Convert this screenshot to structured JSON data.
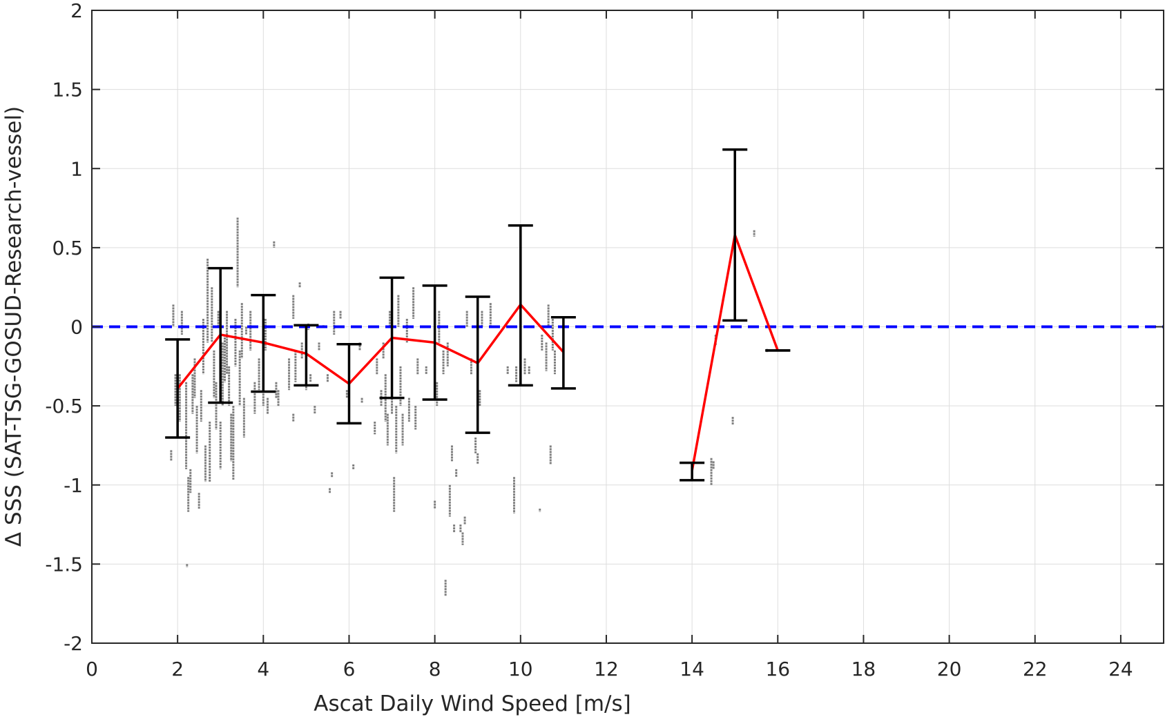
{
  "chart_data": {
    "type": "scatter",
    "xlabel": "Ascat Daily Wind Speed [m/s]",
    "ylabel": "Δ SSS (SAT-TSG-GOSUD-Research-vessel)",
    "xlim": [
      0,
      25
    ],
    "ylim": [
      -2,
      2
    ],
    "x_ticks": [
      0,
      2,
      4,
      6,
      8,
      10,
      12,
      14,
      16,
      18,
      20,
      22,
      24
    ],
    "y_ticks": [
      -2,
      -1.5,
      -1,
      -0.5,
      0,
      0.5,
      1,
      1.5,
      2
    ],
    "y_tick_labels": [
      "-2",
      "-1.5",
      "-1",
      "-0.5",
      "0",
      "0.5",
      "1",
      "1.5",
      "2"
    ],
    "grid": true,
    "reference_line": {
      "y": 0,
      "style": "dashed",
      "color": "#0000ff"
    },
    "colors": {
      "mean_line": "#ff0000",
      "error_bars": "#000000",
      "points": "#7f7f7f",
      "grid": "#dddddd"
    },
    "binned_mean": {
      "x": [
        2,
        3,
        4,
        5,
        6,
        7,
        8,
        9,
        10,
        11,
        14,
        15,
        16
      ],
      "y": [
        -0.39,
        -0.05,
        -0.1,
        -0.17,
        -0.36,
        -0.07,
        -0.1,
        -0.23,
        0.14,
        -0.16,
        -0.91,
        0.58,
        -0.15
      ],
      "segments": [
        [
          0,
          9
        ],
        [
          10,
          12
        ]
      ]
    },
    "error_bars": [
      {
        "x": 2,
        "low": -0.7,
        "high": -0.08
      },
      {
        "x": 3,
        "low": -0.48,
        "high": 0.37
      },
      {
        "x": 4,
        "low": -0.41,
        "high": 0.2
      },
      {
        "x": 5,
        "low": -0.37,
        "high": 0.01
      },
      {
        "x": 6,
        "low": -0.61,
        "high": -0.11
      },
      {
        "x": 7,
        "low": -0.45,
        "high": 0.31
      },
      {
        "x": 8,
        "low": -0.46,
        "high": 0.26
      },
      {
        "x": 9,
        "low": -0.67,
        "high": 0.19
      },
      {
        "x": 10,
        "low": -0.37,
        "high": 0.64
      },
      {
        "x": 11,
        "low": -0.39,
        "high": 0.06
      },
      {
        "x": 14,
        "low": -0.97,
        "high": -0.86
      },
      {
        "x": 15,
        "low": 0.04,
        "high": 1.12
      },
      {
        "x": 16,
        "low": -0.15,
        "high": -0.15
      }
    ],
    "scatter_points": {
      "note_stacks": "each entry [x, y_low, y_high] is a vertical stack of gray observation points",
      "stacks": [
        [
          1.85,
          -0.85,
          -0.78
        ],
        [
          1.9,
          0.0,
          0.14
        ],
        [
          1.95,
          -0.5,
          -0.3
        ],
        [
          2.05,
          -0.6,
          -0.3
        ],
        [
          2.1,
          -0.05,
          0.1
        ],
        [
          2.2,
          -0.9,
          -0.35
        ],
        [
          2.25,
          -1.17,
          -0.95
        ],
        [
          2.22,
          -1.52,
          -1.5
        ],
        [
          2.3,
          -1.05,
          -0.9
        ],
        [
          2.35,
          -0.55,
          -0.3
        ],
        [
          2.4,
          -0.45,
          -0.2
        ],
        [
          2.45,
          -0.8,
          -0.5
        ],
        [
          2.5,
          -1.15,
          -1.05
        ],
        [
          2.55,
          -0.6,
          -0.4
        ],
        [
          2.6,
          -0.3,
          0.05
        ],
        [
          2.65,
          -0.98,
          -0.75
        ],
        [
          2.7,
          -0.1,
          0.43
        ],
        [
          2.75,
          -0.98,
          -0.6
        ],
        [
          2.8,
          -0.1,
          0.25
        ],
        [
          2.85,
          -0.45,
          -0.15
        ],
        [
          2.9,
          -0.65,
          -0.35
        ],
        [
          2.95,
          0.0,
          0.1
        ],
        [
          3.0,
          -0.9,
          -0.6
        ],
        [
          3.05,
          -0.5,
          -0.1
        ],
        [
          3.1,
          -0.35,
          -0.05
        ],
        [
          3.15,
          -0.3,
          0.1
        ],
        [
          3.2,
          -0.5,
          -0.25
        ],
        [
          3.25,
          -0.85,
          -0.55
        ],
        [
          3.3,
          -0.97,
          -0.5
        ],
        [
          3.35,
          -0.25,
          0.05
        ],
        [
          3.4,
          0.25,
          0.69
        ],
        [
          3.45,
          -0.5,
          -0.15
        ],
        [
          3.5,
          -0.2,
          0.15
        ],
        [
          3.55,
          -0.7,
          -0.45
        ],
        [
          3.6,
          -0.05,
          0.0
        ],
        [
          3.7,
          -0.15,
          0.1
        ],
        [
          3.8,
          -0.55,
          -0.35
        ],
        [
          3.9,
          -0.4,
          -0.2
        ],
        [
          4.0,
          -0.5,
          -0.3
        ],
        [
          4.05,
          -0.15,
          0.05
        ],
        [
          4.1,
          -0.55,
          -0.45
        ],
        [
          4.25,
          0.5,
          0.54
        ],
        [
          4.3,
          -0.45,
          -0.35
        ],
        [
          4.35,
          -0.5,
          -0.4
        ],
        [
          4.6,
          -0.4,
          -0.2
        ],
        [
          4.7,
          -0.6,
          -0.55
        ],
        [
          4.75,
          -0.35,
          -0.15
        ],
        [
          4.7,
          0.05,
          0.2
        ],
        [
          4.85,
          0.25,
          0.28
        ],
        [
          4.9,
          -0.2,
          -0.1
        ],
        [
          5.0,
          -0.4,
          -0.15
        ],
        [
          5.05,
          -0.02,
          0.02
        ],
        [
          5.1,
          -0.35,
          -0.3
        ],
        [
          5.2,
          -0.55,
          -0.5
        ],
        [
          5.3,
          -0.15,
          -0.1
        ],
        [
          5.4,
          0.0,
          0.01
        ],
        [
          5.5,
          -0.35,
          -0.3
        ],
        [
          5.6,
          -0.95,
          -0.92
        ],
        [
          5.55,
          -1.05,
          -1.02
        ],
        [
          5.65,
          -0.05,
          0.1
        ],
        [
          5.8,
          0.05,
          0.1
        ],
        [
          5.95,
          -0.45,
          -0.4
        ],
        [
          6.1,
          -0.9,
          -0.87
        ],
        [
          6.25,
          -0.15,
          -0.1
        ],
        [
          6.3,
          -0.48,
          -0.45
        ],
        [
          6.6,
          -0.68,
          -0.6
        ],
        [
          6.65,
          -0.3,
          -0.2
        ],
        [
          6.75,
          -0.5,
          -0.4
        ],
        [
          6.8,
          -0.2,
          -0.1
        ],
        [
          6.85,
          -0.6,
          -0.3
        ],
        [
          6.9,
          -0.75,
          -0.55
        ],
        [
          6.95,
          0.0,
          0.1
        ],
        [
          7.0,
          -0.55,
          -0.45
        ],
        [
          7.05,
          -1.17,
          -0.95
        ],
        [
          7.1,
          -0.8,
          -0.5
        ],
        [
          7.15,
          0.0,
          0.2
        ],
        [
          7.2,
          -0.5,
          -0.25
        ],
        [
          7.25,
          -0.75,
          -0.55
        ],
        [
          7.35,
          -0.1,
          0.05
        ],
        [
          7.4,
          -0.6,
          -0.45
        ],
        [
          7.5,
          0.05,
          0.25
        ],
        [
          7.55,
          -0.65,
          -0.5
        ],
        [
          7.6,
          -0.3,
          -0.2
        ],
        [
          7.8,
          -0.3,
          -0.25
        ],
        [
          8.0,
          -1.15,
          -1.1
        ],
        [
          8.05,
          -0.5,
          -0.35
        ],
        [
          8.1,
          -0.1,
          0.1
        ],
        [
          8.2,
          -0.3,
          -0.15
        ],
        [
          8.25,
          -1.7,
          -1.6
        ],
        [
          8.3,
          -0.25,
          -0.1
        ],
        [
          8.35,
          -1.2,
          -1.0
        ],
        [
          8.4,
          -0.85,
          -0.75
        ],
        [
          8.45,
          -1.3,
          -1.25
        ],
        [
          8.5,
          -0.95,
          -0.9
        ],
        [
          8.6,
          -1.3,
          -1.25
        ],
        [
          8.65,
          -1.38,
          -1.3
        ],
        [
          8.7,
          -1.25,
          -1.2
        ],
        [
          8.75,
          0.0,
          0.1
        ],
        [
          8.85,
          -0.3,
          -0.2
        ],
        [
          8.95,
          -0.8,
          -0.7
        ],
        [
          9.0,
          -0.87,
          -0.8
        ],
        [
          9.05,
          -0.5,
          -0.4
        ],
        [
          9.1,
          0.0,
          0.1
        ],
        [
          9.3,
          0.0,
          0.15
        ],
        [
          9.7,
          -0.3,
          -0.25
        ],
        [
          9.85,
          -1.18,
          -0.95
        ],
        [
          9.9,
          -0.35,
          -0.25
        ],
        [
          10.0,
          0.05,
          0.15
        ],
        [
          10.1,
          -0.3,
          -0.2
        ],
        [
          10.2,
          -0.3,
          -0.25
        ],
        [
          10.45,
          -1.17,
          -1.15
        ],
        [
          10.5,
          -0.15,
          -0.05
        ],
        [
          10.6,
          -0.28,
          -0.1
        ],
        [
          10.65,
          0.0,
          0.14
        ],
        [
          10.7,
          -0.87,
          -0.75
        ],
        [
          10.75,
          -0.15,
          0.05
        ],
        [
          10.8,
          -0.3,
          -0.15
        ],
        [
          14.45,
          -1.0,
          -0.83
        ],
        [
          14.5,
          -0.9,
          -0.85
        ],
        [
          14.55,
          -0.12,
          -0.05
        ],
        [
          14.95,
          -0.62,
          -0.57
        ],
        [
          15.45,
          0.57,
          0.61
        ],
        [
          15.75,
          -0.16,
          -0.14
        ]
      ]
    }
  }
}
